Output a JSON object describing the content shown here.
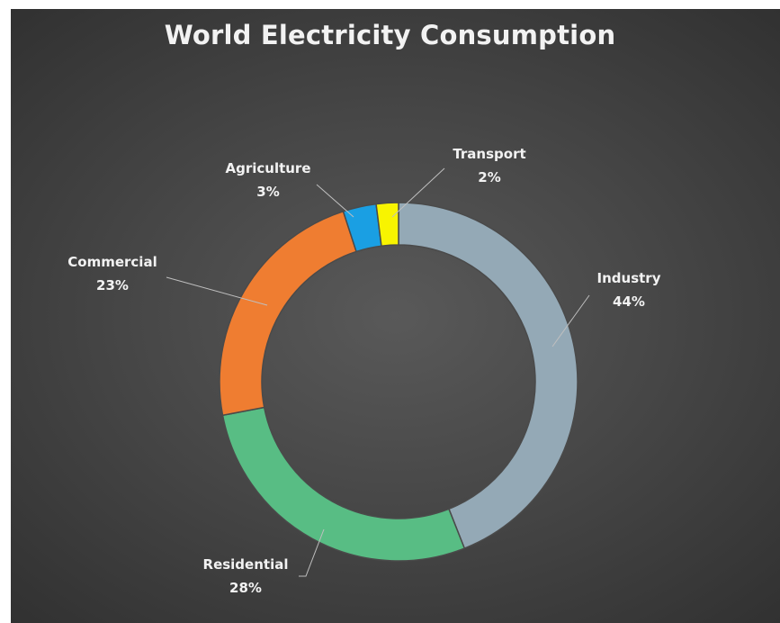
{
  "chart_data": {
    "type": "pie",
    "variant": "doughnut",
    "title": "World Electricity Consumption",
    "slices": [
      {
        "label": "Industry",
        "value": 44,
        "display": "44%",
        "color": "#94a9b6"
      },
      {
        "label": "Residential",
        "value": 28,
        "display": "28%",
        "color": "#58bd84"
      },
      {
        "label": "Commercial",
        "value": 23,
        "display": "23%",
        "color": "#ef7d31"
      },
      {
        "label": "Agriculture",
        "value": 3,
        "display": "3%",
        "color": "#1a9fe3"
      },
      {
        "label": "Transport",
        "value": 2,
        "display": "2%",
        "color": "#f8f400"
      }
    ],
    "legend": "none",
    "background": "#474747"
  }
}
